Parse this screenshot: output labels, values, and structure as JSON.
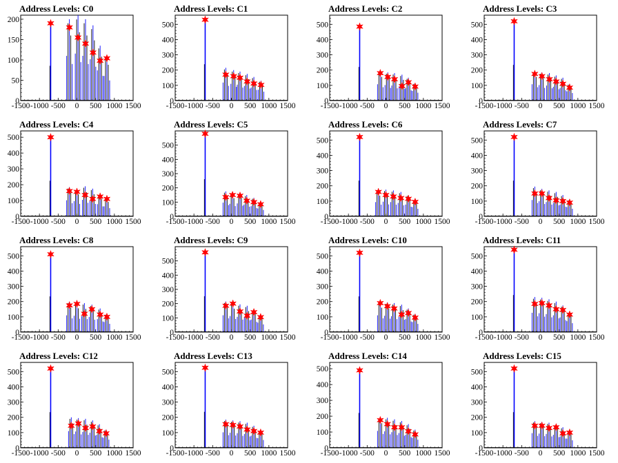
{
  "chart_data": [
    {
      "type": "histogram",
      "title": "Address Levels: C0",
      "xlim": [
        -1500,
        1500
      ],
      "ylim": [
        0,
        210
      ],
      "xticks": [
        -1500,
        -1000,
        -500,
        0,
        500,
        1000,
        1500
      ],
      "yticks": [
        0,
        50,
        100,
        150,
        200
      ],
      "peaks": [
        {
          "x": -700,
          "y": 190
        },
        {
          "x": -200,
          "y": 180
        },
        {
          "x": 30,
          "y": 155
        },
        {
          "x": 230,
          "y": 140
        },
        {
          "x": 430,
          "y": 118
        },
        {
          "x": 620,
          "y": 98
        },
        {
          "x": 800,
          "y": 104
        }
      ],
      "bar_max": [
        190,
        200,
        210,
        200,
        185,
        135,
        110
      ]
    },
    {
      "type": "histogram",
      "title": "Address Levels: C1",
      "xlim": [
        -1500,
        1500
      ],
      "ylim": [
        0,
        560
      ],
      "xticks": [
        -1500,
        -1000,
        -500,
        0,
        500,
        1000,
        1500
      ],
      "yticks": [
        0,
        100,
        200,
        300,
        400,
        500
      ],
      "peaks": [
        {
          "x": -700,
          "y": 530
        },
        {
          "x": -150,
          "y": 170
        },
        {
          "x": 60,
          "y": 160
        },
        {
          "x": 230,
          "y": 150
        },
        {
          "x": 420,
          "y": 125
        },
        {
          "x": 600,
          "y": 112
        },
        {
          "x": 790,
          "y": 103
        }
      ],
      "bar_max": [
        530,
        215,
        200,
        190,
        175,
        155,
        130
      ]
    },
    {
      "type": "histogram",
      "title": "Address Levels: C2",
      "xlim": [
        -1500,
        1500
      ],
      "ylim": [
        0,
        560
      ],
      "xticks": [
        -1500,
        -1000,
        -500,
        0,
        500,
        1000,
        1500
      ],
      "yticks": [
        0,
        100,
        200,
        300,
        400,
        500
      ],
      "peaks": [
        {
          "x": -700,
          "y": 485
        },
        {
          "x": -150,
          "y": 180
        },
        {
          "x": 50,
          "y": 155
        },
        {
          "x": 230,
          "y": 140
        },
        {
          "x": 430,
          "y": 95
        },
        {
          "x": 600,
          "y": 120
        },
        {
          "x": 780,
          "y": 92
        }
      ],
      "bar_max": [
        490,
        195,
        185,
        180,
        170,
        150,
        115
      ]
    },
    {
      "type": "histogram",
      "title": "Address Levels: C3",
      "xlim": [
        -1500,
        1500
      ],
      "ylim": [
        0,
        560
      ],
      "xticks": [
        -1500,
        -1000,
        -500,
        0,
        500,
        1000,
        1500
      ],
      "yticks": [
        0,
        100,
        200,
        300,
        400,
        500
      ],
      "peaks": [
        {
          "x": -700,
          "y": 520
        },
        {
          "x": -150,
          "y": 175
        },
        {
          "x": 40,
          "y": 160
        },
        {
          "x": 240,
          "y": 140
        },
        {
          "x": 420,
          "y": 125
        },
        {
          "x": 600,
          "y": 110
        },
        {
          "x": 780,
          "y": 85
        }
      ],
      "bar_max": [
        520,
        195,
        185,
        180,
        165,
        150,
        110
      ]
    },
    {
      "type": "histogram",
      "title": "Address Levels: C4",
      "xlim": [
        -1500,
        1500
      ],
      "ylim": [
        0,
        540
      ],
      "xticks": [
        -1500,
        -1000,
        -500,
        0,
        500,
        1000,
        1500
      ],
      "yticks": [
        0,
        100,
        200,
        300,
        400,
        500
      ],
      "peaks": [
        {
          "x": -700,
          "y": 500
        },
        {
          "x": -200,
          "y": 160
        },
        {
          "x": 0,
          "y": 155
        },
        {
          "x": 220,
          "y": 135
        },
        {
          "x": 420,
          "y": 110
        },
        {
          "x": 620,
          "y": 125
        },
        {
          "x": 800,
          "y": 110
        }
      ],
      "bar_max": [
        500,
        185,
        175,
        190,
        175,
        140,
        115
      ]
    },
    {
      "type": "histogram",
      "title": "Address Levels: C5",
      "xlim": [
        -1500,
        1500
      ],
      "ylim": [
        0,
        600
      ],
      "xticks": [
        -1500,
        -1000,
        -500,
        0,
        500,
        1000,
        1500
      ],
      "yticks": [
        0,
        100,
        200,
        300,
        400,
        500
      ],
      "peaks": [
        {
          "x": -700,
          "y": 580
        },
        {
          "x": -150,
          "y": 135
        },
        {
          "x": 30,
          "y": 150
        },
        {
          "x": 230,
          "y": 145
        },
        {
          "x": 410,
          "y": 110
        },
        {
          "x": 600,
          "y": 100
        },
        {
          "x": 780,
          "y": 85
        }
      ],
      "bar_max": [
        580,
        175,
        160,
        165,
        150,
        130,
        100
      ]
    },
    {
      "type": "histogram",
      "title": "Address Levels: C6",
      "xlim": [
        -1500,
        1500
      ],
      "ylim": [
        0,
        560
      ],
      "xticks": [
        -1500,
        -1000,
        -500,
        0,
        500,
        1000,
        1500
      ],
      "yticks": [
        0,
        100,
        200,
        300,
        400,
        500
      ],
      "peaks": [
        {
          "x": -700,
          "y": 520
        },
        {
          "x": -200,
          "y": 160
        },
        {
          "x": 0,
          "y": 140
        },
        {
          "x": 200,
          "y": 130
        },
        {
          "x": 400,
          "y": 120
        },
        {
          "x": 600,
          "y": 115
        },
        {
          "x": 780,
          "y": 95
        }
      ],
      "bar_max": [
        520,
        170,
        175,
        170,
        160,
        140,
        110
      ]
    },
    {
      "type": "histogram",
      "title": "Address Levels: C7",
      "xlim": [
        -1500,
        1500
      ],
      "ylim": [
        0,
        560
      ],
      "xticks": [
        -1500,
        -1000,
        -500,
        0,
        500,
        1000,
        1500
      ],
      "yticks": [
        0,
        100,
        200,
        300,
        400,
        500
      ],
      "peaks": [
        {
          "x": -700,
          "y": 520
        },
        {
          "x": -150,
          "y": 150
        },
        {
          "x": 40,
          "y": 150
        },
        {
          "x": 230,
          "y": 120
        },
        {
          "x": 420,
          "y": 105
        },
        {
          "x": 600,
          "y": 100
        },
        {
          "x": 780,
          "y": 90
        }
      ],
      "bar_max": [
        520,
        195,
        180,
        170,
        160,
        140,
        110
      ]
    },
    {
      "type": "histogram",
      "title": "Address Levels: C8",
      "xlim": [
        -1500,
        1500
      ],
      "ylim": [
        0,
        560
      ],
      "xticks": [
        -1500,
        -1000,
        -500,
        0,
        500,
        1000,
        1500
      ],
      "yticks": [
        0,
        100,
        200,
        300,
        400,
        500
      ],
      "peaks": [
        {
          "x": -700,
          "y": 510
        },
        {
          "x": -200,
          "y": 175
        },
        {
          "x": 0,
          "y": 185
        },
        {
          "x": 200,
          "y": 120
        },
        {
          "x": 400,
          "y": 150
        },
        {
          "x": 620,
          "y": 115
        },
        {
          "x": 800,
          "y": 100
        }
      ],
      "bar_max": [
        520,
        200,
        195,
        190,
        180,
        155,
        120
      ]
    },
    {
      "type": "histogram",
      "title": "Address Levels: C9",
      "xlim": [
        -1500,
        1500
      ],
      "ylim": [
        0,
        600
      ],
      "xticks": [
        -1500,
        -1000,
        -500,
        0,
        500,
        1000,
        1500
      ],
      "yticks": [
        0,
        100,
        200,
        300,
        400,
        500
      ],
      "peaks": [
        {
          "x": -700,
          "y": 560
        },
        {
          "x": -150,
          "y": 185
        },
        {
          "x": 40,
          "y": 200
        },
        {
          "x": 230,
          "y": 145
        },
        {
          "x": 420,
          "y": 115
        },
        {
          "x": 600,
          "y": 140
        },
        {
          "x": 780,
          "y": 105
        }
      ],
      "bar_max": [
        560,
        215,
        205,
        195,
        185,
        160,
        120
      ]
    },
    {
      "type": "histogram",
      "title": "Address Levels: C10",
      "xlim": [
        -1500,
        1500
      ],
      "ylim": [
        0,
        560
      ],
      "xticks": [
        -1500,
        -1000,
        -500,
        0,
        500,
        1000,
        1500
      ],
      "yticks": [
        0,
        100,
        200,
        300,
        400,
        500
      ],
      "peaks": [
        {
          "x": -700,
          "y": 520
        },
        {
          "x": -150,
          "y": 190
        },
        {
          "x": 40,
          "y": 170
        },
        {
          "x": 220,
          "y": 155
        },
        {
          "x": 420,
          "y": 115
        },
        {
          "x": 600,
          "y": 125
        },
        {
          "x": 780,
          "y": 95
        }
      ],
      "bar_max": [
        520,
        200,
        195,
        190,
        180,
        155,
        120
      ]
    },
    {
      "type": "histogram",
      "title": "Address Levels: C11",
      "xlim": [
        -1500,
        1500
      ],
      "ylim": [
        0,
        560
      ],
      "xticks": [
        -1500,
        -1000,
        -500,
        0,
        500,
        1000,
        1500
      ],
      "yticks": [
        0,
        100,
        200,
        300,
        400,
        500
      ],
      "peaks": [
        {
          "x": -700,
          "y": 540
        },
        {
          "x": -150,
          "y": 185
        },
        {
          "x": 40,
          "y": 190
        },
        {
          "x": 230,
          "y": 175
        },
        {
          "x": 420,
          "y": 150
        },
        {
          "x": 600,
          "y": 145
        },
        {
          "x": 780,
          "y": 115
        }
      ],
      "bar_max": [
        540,
        230,
        225,
        215,
        200,
        175,
        130
      ]
    },
    {
      "type": "histogram",
      "title": "Address Levels: C12",
      "xlim": [
        -1500,
        1500
      ],
      "ylim": [
        0,
        560
      ],
      "xticks": [
        -1500,
        -1000,
        -500,
        0,
        500,
        1000,
        1500
      ],
      "yticks": [
        0,
        100,
        200,
        300,
        400,
        500
      ],
      "peaks": [
        {
          "x": -700,
          "y": 520
        },
        {
          "x": -150,
          "y": 145
        },
        {
          "x": 40,
          "y": 160
        },
        {
          "x": 230,
          "y": 130
        },
        {
          "x": 420,
          "y": 140
        },
        {
          "x": 600,
          "y": 110
        },
        {
          "x": 780,
          "y": 95
        }
      ],
      "bar_max": [
        520,
        200,
        195,
        190,
        180,
        155,
        120
      ]
    },
    {
      "type": "histogram",
      "title": "Address Levels: C13",
      "xlim": [
        -1500,
        1500
      ],
      "ylim": [
        0,
        560
      ],
      "xticks": [
        -1500,
        -1000,
        -500,
        0,
        500,
        1000,
        1500
      ],
      "yticks": [
        0,
        100,
        200,
        300,
        400,
        500
      ],
      "peaks": [
        {
          "x": -700,
          "y": 525
        },
        {
          "x": -150,
          "y": 155
        },
        {
          "x": 40,
          "y": 150
        },
        {
          "x": 230,
          "y": 140
        },
        {
          "x": 420,
          "y": 120
        },
        {
          "x": 600,
          "y": 110
        },
        {
          "x": 780,
          "y": 100
        }
      ],
      "bar_max": [
        525,
        185,
        180,
        175,
        165,
        145,
        115
      ]
    },
    {
      "type": "histogram",
      "title": "Address Levels: C14",
      "xlim": [
        -1500,
        1500
      ],
      "ylim": [
        0,
        540
      ],
      "xticks": [
        -1500,
        -1000,
        -500,
        0,
        500,
        1000,
        1500
      ],
      "yticks": [
        0,
        100,
        200,
        300,
        400,
        500
      ],
      "peaks": [
        {
          "x": -700,
          "y": 490
        },
        {
          "x": -150,
          "y": 175
        },
        {
          "x": 40,
          "y": 150
        },
        {
          "x": 230,
          "y": 130
        },
        {
          "x": 420,
          "y": 130
        },
        {
          "x": 600,
          "y": 105
        },
        {
          "x": 780,
          "y": 85
        }
      ],
      "bar_max": [
        490,
        195,
        190,
        180,
        170,
        150,
        115
      ]
    },
    {
      "type": "histogram",
      "title": "Address Levels: C15",
      "xlim": [
        -1500,
        1500
      ],
      "ylim": [
        0,
        560
      ],
      "xticks": [
        -1500,
        -1000,
        -500,
        0,
        500,
        1000,
        1500
      ],
      "yticks": [
        0,
        100,
        200,
        300,
        400,
        500
      ],
      "peaks": [
        {
          "x": -700,
          "y": 520
        },
        {
          "x": -150,
          "y": 145
        },
        {
          "x": 40,
          "y": 145
        },
        {
          "x": 230,
          "y": 130
        },
        {
          "x": 420,
          "y": 135
        },
        {
          "x": 600,
          "y": 95
        },
        {
          "x": 780,
          "y": 100
        }
      ],
      "bar_max": [
        520,
        175,
        170,
        165,
        155,
        135,
        110
      ]
    }
  ],
  "colors": {
    "bars": "#0000ff",
    "bar_dark": "#000000",
    "marker": "#ff0000",
    "axis": "#000000"
  }
}
